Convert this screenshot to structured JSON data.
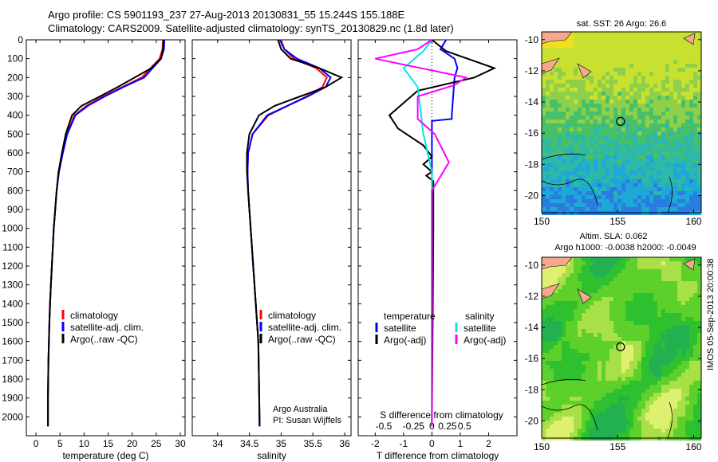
{
  "header": {
    "line1": "Argo profile: CS 5901193_237 27-Aug-2013 20130831_55 15.244S 155.188E",
    "line2": "Climatology: CARS2009. Satellite-adjusted climatology: synTS_20130829.nc (1.8d later)"
  },
  "side_text": "IMOS 05-Sep-2013 20:00:38",
  "colors": {
    "climatology": "#ff0000",
    "satellite": "#0000ff",
    "argo": "#000000",
    "sal_satellite": "#00e5e5",
    "sal_argo": "#ff00ff"
  },
  "chart_data": [
    {
      "type": "line",
      "xlabel": "temperature (deg C)",
      "xlim": [
        -2,
        31
      ],
      "ylim": [
        2100,
        0
      ],
      "xticks": [
        0,
        5,
        10,
        15,
        20,
        25,
        30
      ],
      "yticks": [
        0,
        100,
        200,
        300,
        400,
        500,
        600,
        700,
        800,
        900,
        1000,
        1100,
        1200,
        1300,
        1400,
        1500,
        1600,
        1700,
        1800,
        1900,
        2000
      ],
      "legend": [
        "climatology",
        "satellite-adj. clim.",
        "Argo(..raw -QC)"
      ],
      "series": [
        {
          "name": "climatology",
          "color": "#ff0000",
          "x": [
            26.4,
            26.3,
            25.7,
            22,
            18,
            14,
            10.5,
            8,
            6.4,
            5.5,
            4.7,
            4.3,
            4.0,
            3.7,
            3.5,
            3.3,
            3.1,
            2.9,
            2.8,
            2.7,
            2.6,
            2.55,
            2.5,
            2.5
          ],
          "y": [
            0,
            50,
            100,
            200,
            250,
            300,
            350,
            400,
            500,
            600,
            700,
            800,
            900,
            1000,
            1100,
            1200,
            1300,
            1400,
            1500,
            1600,
            1700,
            1800,
            1900,
            2050
          ]
        },
        {
          "name": "satellite-adj. clim.",
          "color": "#0000ff",
          "x": [
            26.7,
            26.6,
            26,
            22.5,
            18.2,
            14.3,
            10.8,
            8.2,
            6.5,
            5.6,
            4.8,
            4.3,
            4.0,
            3.7,
            3.5,
            3.3,
            3.1,
            2.95,
            2.8,
            2.7,
            2.6,
            2.55,
            2.5,
            2.5
          ],
          "y": [
            0,
            50,
            100,
            200,
            250,
            300,
            350,
            400,
            500,
            600,
            700,
            800,
            900,
            1000,
            1100,
            1200,
            1300,
            1400,
            1500,
            1600,
            1700,
            1800,
            1900,
            2050
          ]
        },
        {
          "name": "Argo(..raw -QC)",
          "color": "#000000",
          "x": [
            26.5,
            26.4,
            26,
            24,
            17,
            13.3,
            9.5,
            7.5,
            6.2,
            5.4,
            4.7,
            4.3,
            4.0,
            3.7,
            3.5,
            3.3,
            3.1,
            2.95,
            2.8,
            2.7,
            2.6,
            2.55,
            2.5,
            2.5
          ],
          "y": [
            0,
            50,
            100,
            150,
            250,
            300,
            350,
            400,
            500,
            600,
            700,
            800,
            900,
            1000,
            1100,
            1200,
            1300,
            1400,
            1500,
            1600,
            1700,
            1800,
            1900,
            2050
          ]
        }
      ]
    },
    {
      "type": "line",
      "xlabel": "salinity",
      "xlim": [
        33.6,
        36.1
      ],
      "ylim": [
        2100,
        0
      ],
      "xticks": [
        34,
        34.5,
        35,
        35.5,
        36
      ],
      "legend": [
        "climatology",
        "satellite-adj. clim.",
        "Argo(..raw -QC)"
      ],
      "annotation": [
        "Argo Australia",
        "PI: Susan Wijffels"
      ],
      "series": [
        {
          "name": "climatology",
          "color": "#ff0000",
          "x": [
            35.0,
            35.05,
            35.2,
            35.55,
            35.72,
            35.65,
            35.4,
            35.1,
            34.8,
            34.55,
            34.48,
            34.47,
            34.48,
            34.5,
            34.52,
            34.54,
            34.56,
            34.58,
            34.6,
            34.62,
            34.64,
            34.65,
            34.66
          ],
          "y": [
            0,
            50,
            100,
            150,
            200,
            250,
            300,
            350,
            400,
            500,
            600,
            700,
            800,
            900,
            1000,
            1100,
            1200,
            1300,
            1400,
            1500,
            1600,
            1800,
            2050
          ]
        },
        {
          "name": "satellite-adj. clim.",
          "color": "#0000ff",
          "x": [
            34.98,
            35.05,
            35.25,
            35.6,
            35.78,
            35.7,
            35.42,
            35.1,
            34.78,
            34.55,
            34.48,
            34.47,
            34.48,
            34.5,
            34.52,
            34.54,
            34.56,
            34.58,
            34.6,
            34.62,
            34.64,
            34.65,
            34.66
          ],
          "y": [
            0,
            50,
            100,
            150,
            200,
            250,
            300,
            350,
            400,
            500,
            600,
            700,
            800,
            900,
            1000,
            1100,
            1200,
            1300,
            1400,
            1500,
            1600,
            1800,
            2050
          ]
        },
        {
          "name": "Argo(..raw -QC)",
          "color": "#000000",
          "x": [
            34.95,
            35.0,
            35.15,
            35.6,
            35.95,
            35.7,
            35.3,
            34.9,
            34.65,
            34.5,
            34.46,
            34.46,
            34.48,
            34.5,
            34.52,
            34.54,
            34.56,
            34.58,
            34.6,
            34.62,
            34.64,
            34.65,
            34.66
          ],
          "y": [
            0,
            50,
            100,
            150,
            200,
            250,
            300,
            350,
            400,
            500,
            600,
            700,
            800,
            900,
            1000,
            1100,
            1200,
            1300,
            1400,
            1500,
            1600,
            1800,
            2050
          ]
        }
      ]
    },
    {
      "type": "line",
      "xlabel": "T difference from climatology",
      "xlabel_top": "S difference from climatology",
      "xlim": [
        -2.6,
        3.0
      ],
      "ylim": [
        2100,
        0
      ],
      "xticks": [
        -2,
        -1,
        0,
        1,
        2
      ],
      "xticks_top": [
        "-0.5",
        "-0.25",
        "0",
        "0.25",
        "0.5"
      ],
      "legend_titles": [
        "temperature",
        "salinity"
      ],
      "legend": [
        "satellite",
        "Argo(-adj)",
        "satellite",
        "Argo(-adj)"
      ],
      "series": [
        {
          "name": "satellite",
          "color": "#0000ff",
          "x": [
            0.5,
            0.3,
            0.8,
            0.9,
            0.8,
            0.75,
            0.7,
            0.7,
            0,
            0,
            0,
            0
          ],
          "y": [
            0,
            50,
            100,
            150,
            200,
            300,
            400,
            420,
            430,
            800,
            1500,
            2050
          ]
        },
        {
          "name": "Argo(-adj)",
          "color": "#000000",
          "x": [
            0.0,
            0.5,
            2.2,
            1.5,
            -0.5,
            -1.5,
            -1.2,
            -0.7,
            -0.3,
            0.0,
            -0.3,
            0.0,
            -0.2,
            0.05,
            0.05,
            0.0
          ],
          "y": [
            0,
            60,
            150,
            200,
            270,
            400,
            470,
            520,
            560,
            620,
            660,
            700,
            720,
            750,
            1000,
            2050
          ]
        },
        {
          "name": "satellite",
          "color": "#00e5e5",
          "x": [
            0.0,
            -0.3,
            -1.0,
            -0.5,
            -0.3,
            0,
            0,
            0
          ],
          "y": [
            0,
            60,
            150,
            250,
            500,
            700,
            1200,
            2050
          ]
        },
        {
          "name": "Argo(-adj)",
          "color": "#ff00ff",
          "x": [
            0.0,
            -0.5,
            -2.0,
            1.2,
            0.8,
            -0.5,
            -0.5,
            0.1,
            0.6,
            0.0,
            0.0,
            0.0
          ],
          "y": [
            0,
            50,
            100,
            200,
            240,
            300,
            420,
            500,
            650,
            800,
            1000,
            2050
          ]
        }
      ]
    },
    {
      "type": "heatmap",
      "title": "sat. SST: 26 Argo: 26.6",
      "xticks": [
        150,
        155,
        160
      ],
      "yticks": [
        -10,
        -12,
        -14,
        -16,
        -18,
        -20
      ],
      "xlim": [
        150,
        160.5
      ],
      "ylim": [
        -21.1,
        -9.5
      ],
      "marker": {
        "lon": 155.188,
        "lat": -15.244
      }
    },
    {
      "type": "heatmap",
      "title": "Altim. SLA: 0.062",
      "subtitle": "Argo h1000: -0.0038 h2000: -0.0049",
      "xticks": [
        150,
        155,
        160
      ],
      "yticks": [
        -10,
        -12,
        -14,
        -16,
        -18,
        -20
      ],
      "xlim": [
        150,
        160.5
      ],
      "ylim": [
        -21.1,
        -9.5
      ],
      "marker": {
        "lon": 155.188,
        "lat": -15.244
      }
    }
  ]
}
